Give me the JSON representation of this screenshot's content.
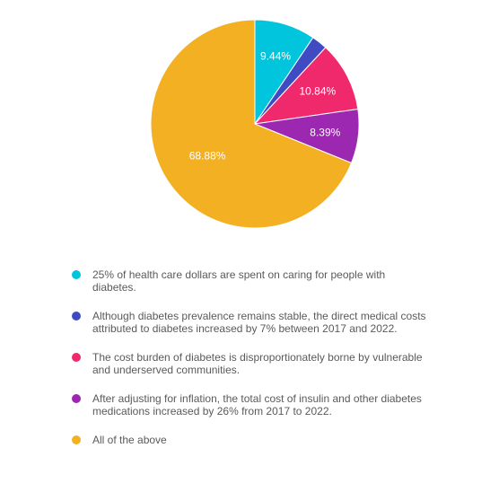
{
  "chart_data": {
    "type": "pie",
    "slices": [
      {
        "label": "25% of health care dollars are spent on caring for people with diabetes.",
        "value": 9.44,
        "display": "9.44%",
        "color": "#00C5DC"
      },
      {
        "label": "Although diabetes prevalence remains stable, the direct medical costs attributed to diabetes increased by 7% between 2017 and 2022.",
        "value": 2.45,
        "display": "",
        "color": "#3F4BC2"
      },
      {
        "label": "The cost burden of diabetes is disproportionately borne by vulnerable and underserved communities.",
        "value": 10.84,
        "display": "10.84%",
        "color": "#F0286C"
      },
      {
        "label": "After adjusting for inflation, the total cost of insulin and other diabetes medications increased by 26% from 2017 to 2022.",
        "value": 8.39,
        "display": "8.39%",
        "color": "#9C27B0"
      },
      {
        "label": "All of the above",
        "value": 68.88,
        "display": "68.88%",
        "color": "#F2B022"
      }
    ],
    "legend_placement": "bottom"
  }
}
